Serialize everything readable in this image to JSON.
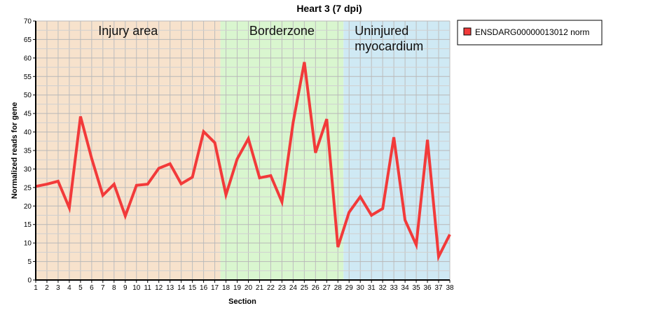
{
  "chart_data": {
    "type": "line",
    "title": "Heart 3 (7 dpi)",
    "xlabel": "Section",
    "ylabel": "Normalized reads for gene",
    "ylim": [
      0,
      70
    ],
    "yticks": [
      0,
      5,
      10,
      15,
      20,
      25,
      30,
      35,
      40,
      45,
      50,
      55,
      60,
      65,
      70
    ],
    "x": [
      1,
      2,
      3,
      4,
      5,
      6,
      7,
      8,
      9,
      10,
      11,
      12,
      13,
      14,
      15,
      16,
      17,
      18,
      19,
      20,
      21,
      22,
      23,
      24,
      25,
      26,
      27,
      28,
      29,
      30,
      31,
      32,
      33,
      34,
      35,
      36,
      37,
      38
    ],
    "grid": true,
    "legend_position": "outside-top-right",
    "regions": [
      {
        "label_lines": [
          "Injury area"
        ],
        "from": 0.5,
        "to": 17.5,
        "color": "#f7e2cc"
      },
      {
        "label_lines": [
          "Borderzone"
        ],
        "from": 17.5,
        "to": 28.5,
        "color": "#d9f6cf"
      },
      {
        "label_lines": [
          "Uninjured",
          "myocardium"
        ],
        "from": 28.5,
        "to": 38.5,
        "color": "#cfe9f4"
      }
    ],
    "series": [
      {
        "name": "ENSDARG00000013012 norm",
        "color": "#f23a3a",
        "values": [
          25.3,
          25.9,
          26.7,
          19.5,
          44.2,
          32.8,
          22.9,
          25.9,
          17.3,
          25.6,
          25.9,
          30.2,
          31.4,
          26.0,
          27.8,
          40.1,
          37.1,
          23.0,
          32.7,
          38.2,
          27.6,
          28.2,
          21.1,
          42.6,
          58.9,
          34.4,
          43.5,
          8.9,
          18.3,
          22.5,
          17.5,
          19.3,
          38.6,
          16.2,
          9.5,
          37.9,
          6.3,
          12.3
        ]
      }
    ]
  }
}
